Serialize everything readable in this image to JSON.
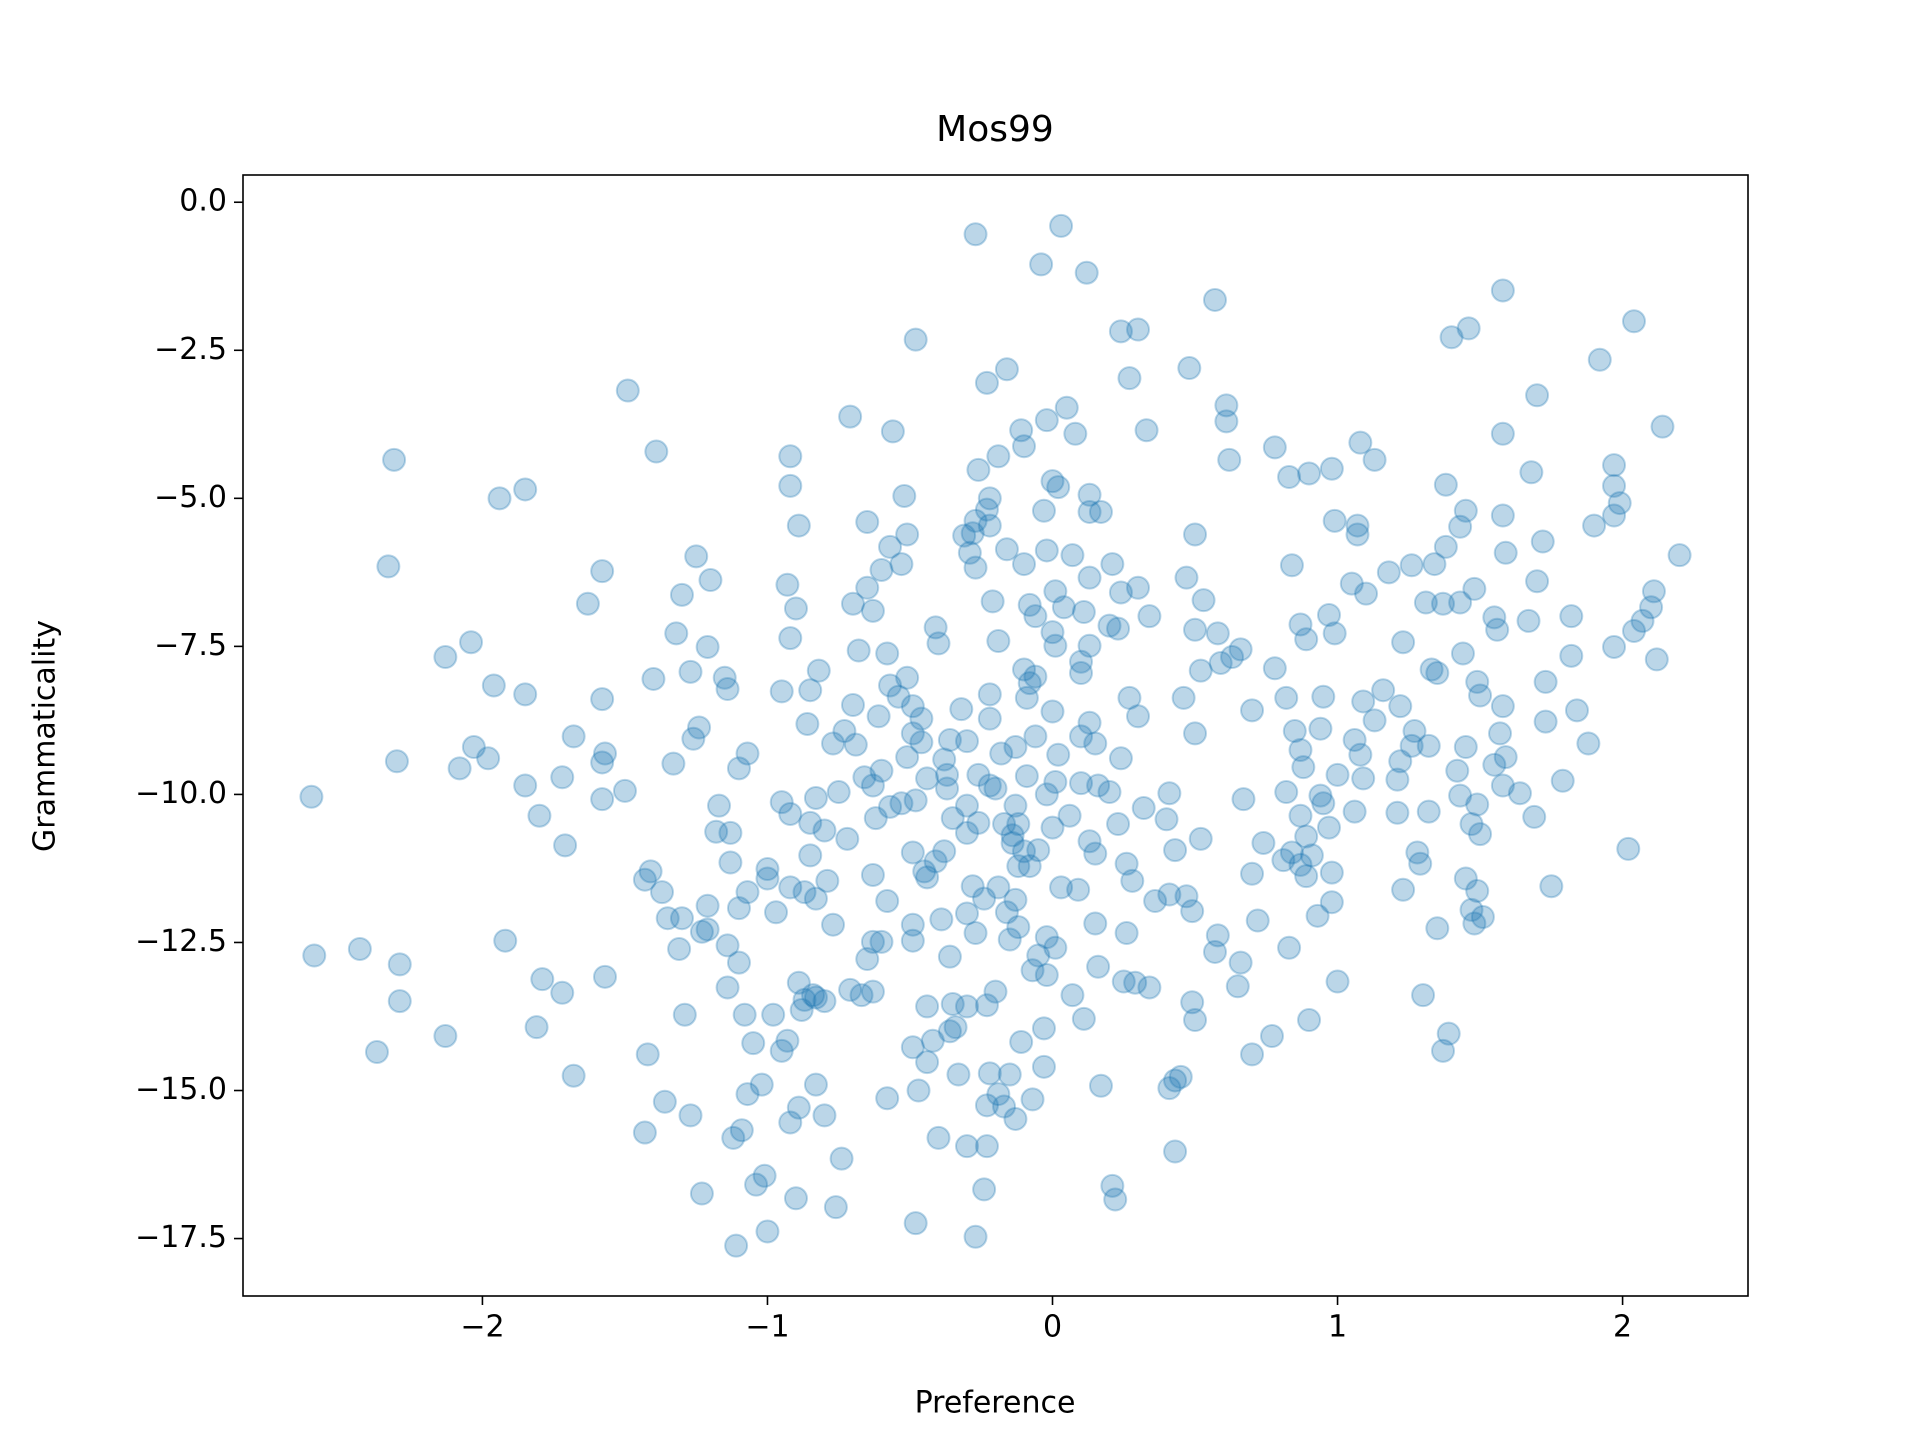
{
  "chart_data": {
    "type": "scatter",
    "title": "Mos99",
    "x_label": "Preference",
    "y_label": "Grammaticality",
    "color": "#1f77b4",
    "opacity": 0.3,
    "xlim": [
      -2.84,
      2.44
    ],
    "ylim": [
      -18.47,
      0.46
    ],
    "xticks": [
      {
        "value": -2,
        "label": "−2"
      },
      {
        "value": -1,
        "label": "−1"
      },
      {
        "value": 0,
        "label": "0"
      },
      {
        "value": 1,
        "label": "1"
      },
      {
        "value": 2,
        "label": "2"
      }
    ],
    "yticks": [
      {
        "value": 0,
        "label": "0.0"
      },
      {
        "value": -2.5,
        "label": "−2.5"
      },
      {
        "value": -5,
        "label": "−5.0"
      },
      {
        "value": -7.5,
        "label": "−7.5"
      },
      {
        "value": -10,
        "label": "−10.0"
      },
      {
        "value": -12.5,
        "label": "−12.5"
      },
      {
        "value": -15,
        "label": "−15.0"
      },
      {
        "value": -17.5,
        "label": "−17.5"
      }
    ],
    "grid": false,
    "x": [
      -0.27,
      0.03,
      -0.04,
      0.12,
      0.57,
      1.58,
      2.04,
      1.4,
      1.46,
      0.24,
      0.3,
      -0.48,
      1.92,
      -0.16,
      -0.23,
      0.48,
      0.27,
      -1.49,
      1.7,
      0.05,
      0.61,
      0.61,
      -0.71,
      -0.02,
      0.08,
      0.33,
      2.14,
      1.58,
      -0.56,
      -0.11,
      -0.1,
      1.08,
      1.13,
      -1.39,
      -0.92,
      -2.31,
      0.62,
      0.78,
      -0.19,
      -0.26,
      0.98,
      0.9,
      0.83,
      1.68,
      1.97,
      1.97,
      1.38,
      0.0,
      0.02,
      -0.92,
      -1.85,
      -1.94,
      -0.22,
      -0.52,
      0.13,
      0.17,
      0.13,
      1.99,
      1.97,
      -0.03,
      -0.23,
      1.45,
      1.43,
      1.58,
      0.99,
      1.07,
      1.07,
      1.9,
      -0.89,
      -0.65,
      -0.27,
      -0.22,
      0.5,
      -0.31,
      -0.28,
      -0.51,
      -0.57,
      -0.02,
      0.07,
      1.38,
      2.2,
      1.72,
      1.59,
      -1.25,
      -0.29,
      -0.27,
      -0.16,
      -0.53,
      0.84,
      1.26,
      1.34,
      -2.33,
      0.21,
      -1.58,
      -0.6,
      1.18,
      -0.1,
      0.13,
      0.47,
      -1.2,
      -0.93,
      1.7,
      1.48,
      0.3,
      1.05,
      1.1,
      0.01,
      0.24,
      2.11,
      -0.65,
      -1.3,
      0.53,
      1.43,
      1.37,
      1.31,
      -1.63,
      -0.7,
      -0.63,
      -0.9,
      0.04,
      0.11,
      -0.08,
      -0.21,
      2.1,
      1.82,
      0.34,
      0.97,
      1.67,
      2.07,
      2.04,
      -0.06,
      0.58,
      1.55,
      1.56,
      0.87,
      0.89,
      -0.41,
      0.23,
      0.0,
      0.5,
      0.2,
      0.99,
      -1.32,
      -0.92,
      -0.19,
      -0.4,
      -2.04,
      0.01,
      0.13,
      1.23,
      -1.21,
      0.66,
      0.63,
      1.97,
      -0.68,
      -0.58,
      -2.13,
      1.44,
      1.82,
      0.59,
      0.52,
      2.12,
      0.1,
      0.1,
      1.33,
      1.35,
      0.78,
      -0.1,
      -1.27,
      -0.82,
      -0.51,
      -1.15,
      -1.14,
      -0.06,
      -0.08,
      -1.4,
      1.49,
      1.73,
      -1.96,
      -0.57,
      -0.54,
      -0.95,
      -0.85,
      -0.22,
      1.16,
      1.5,
      -1.85,
      1.09,
      0.46,
      0.27,
      -1.58,
      -0.09,
      0.7,
      0.82,
      0.95,
      1.58,
      -0.49,
      -0.7,
      -0.32,
      1.22,
      1.84,
      0.0,
      -1.24,
      -0.46,
      -0.61,
      0.3,
      1.73,
      -0.22,
      0.13,
      -0.73,
      -0.86,
      1.13,
      0.85,
      0.94,
      -0.49,
      0.5,
      1.57,
      0.1,
      1.27,
      -1.26,
      -1.68,
      -0.06,
      -0.36,
      1.06,
      -0.46,
      -0.3,
      -0.77,
      -0.69,
      0.15,
      -0.13,
      1.88,
      1.26,
      1.32,
      1.45,
      -2.03,
      0.87,
      -0.18,
      -1.57,
      -0.51,
      -1.07,
      0.02,
      1.08,
      -1.98,
      1.59,
      1.22,
      0.24,
      -0.38,
      -1.58,
      -2.3,
      -1.33,
      0.88,
      1.55,
      -2.08,
      -1.1,
      -0.6,
      1.42,
      -0.26,
      -0.37,
      1.0,
      1.09,
      -0.66,
      -0.44,
      -1.72,
      -0.09,
      1.79,
      1.21,
      -1.85,
      0.01,
      0.1,
      -0.63,
      0.16,
      -0.22,
      1.58,
      -0.37,
      -0.2,
      -1.5,
      0.82,
      1.64,
      -0.75,
      -0.02,
      0.94,
      0.2,
      0.41,
      1.43,
      0.67,
      -2.6,
      -1.58,
      -0.83,
      -0.95,
      0.95,
      -0.53,
      -0.48,
      -0.57,
      1.49,
      -1.17,
      -0.3,
      -0.13,
      -0.92,
      1.21,
      1.06,
      0.32,
      1.32,
      -0.62,
      0.87,
      -1.8,
      1.69,
      0.06,
      -0.35,
      -0.26,
      0.23,
      0.4,
      -0.85,
      -0.17,
      -0.12,
      0.0,
      0.97,
      1.47,
      -0.8,
      -1.18,
      -0.3,
      -1.13,
      1.5,
      -0.14,
      0.89,
      -0.72,
      0.52,
      -0.14,
      0.74,
      0.13,
      -1.71,
      -0.49,
      -0.85,
      0.84,
      0.43,
      -0.05,
      -0.38,
      -0.1,
      1.28,
      2.02,
      0.15,
      0.91,
      0.81,
      -0.41,
      -1.13,
      1.29,
      0.87,
      0.26,
      -0.08,
      -0.12,
      -1.0,
      -1.41,
      0.7,
      0.98,
      -0.45,
      -0.63,
      0.89,
      -1.0,
      1.45,
      -1.43,
      -0.44,
      -0.79,
      1.75,
      0.28,
      -0.92,
      0.03,
      0.09,
      -0.28,
      1.23,
      -1.07,
      1.49,
      -0.87,
      -0.19,
      -1.37,
      0.41,
      0.47,
      -0.24,
      0.36,
      -0.13,
      -0.83,
      0.98,
      -0.58,
      -1.21,
      -1.1,
      0.49,
      1.47,
      -0.3,
      -0.16,
      -0.97,
      0.93,
      1.51,
      -1.35,
      -1.3,
      -0.39,
      0.72,
      1.48,
      0.15,
      -0.49,
      -0.77,
      -0.12,
      1.35,
      -1.21,
      -1.23,
      0.26,
      -0.27,
      -0.02,
      0.58,
      -0.6,
      -0.63,
      -0.49,
      -1.92,
      -0.15,
      -1.14,
      0.83,
      -1.31,
      -2.43,
      0.01,
      -2.59,
      -0.05,
      0.57,
      -0.36,
      -0.65,
      -1.1,
      -2.29,
      0.66,
      0.16,
      -0.07,
      -0.02,
      1.0,
      -0.89,
      -1.79,
      -1.57,
      0.25,
      0.29,
      0.34,
      -1.14,
      0.65,
      -0.71,
      -0.63,
      -1.72,
      -0.2,
      -0.84,
      -0.67,
      -0.83,
      0.07,
      -0.87,
      1.3,
      -0.8,
      -2.29,
      -0.35,
      -0.23,
      -0.44,
      0.49,
      -0.88,
      -0.3,
      0.5,
      0.11,
      -1.08,
      -1.29,
      -0.98,
      0.9,
      -0.34,
      -1.81,
      -0.03,
      1.39,
      0.77,
      -2.13,
      -0.36,
      -0.11,
      0.7,
      -0.93,
      -1.05,
      -0.95,
      -0.49,
      -0.42,
      1.37,
      -2.37,
      -1.42,
      -0.44,
      -0.03,
      -0.22,
      -0.15,
      0.45,
      -0.83,
      -1.68,
      -0.33,
      0.43,
      0.17,
      -1.02,
      0.41,
      -0.47,
      -0.19,
      -1.07,
      -0.07,
      -0.58,
      -1.36,
      -0.17,
      -0.23,
      -0.89,
      -1.27,
      -0.8,
      -0.92,
      -0.13,
      -1.09,
      -1.43,
      -0.4,
      -1.12,
      -0.3,
      -0.23,
      0.43,
      -0.74,
      -1.01,
      -1.04,
      0.21,
      -0.24,
      -1.23,
      0.22,
      -0.9,
      -0.76,
      -0.48,
      -1.0,
      -0.27,
      -1.11
    ],
    "values": [
      -0.54,
      -0.4,
      -1.05,
      -1.19,
      -1.65,
      -1.49,
      -2.01,
      -2.28,
      -2.13,
      -2.18,
      -2.15,
      -2.32,
      -2.66,
      -2.82,
      -3.05,
      -2.8,
      -2.97,
      -3.18,
      -3.26,
      -3.47,
      -3.43,
      -3.7,
      -3.62,
      -3.68,
      -3.91,
      -3.85,
      -3.79,
      -3.91,
      -3.87,
      -3.85,
      -4.12,
      -4.06,
      -4.35,
      -4.21,
      -4.29,
      -4.35,
      -4.35,
      -4.14,
      -4.29,
      -4.52,
      -4.5,
      -4.58,
      -4.64,
      -4.56,
      -4.44,
      -4.79,
      -4.77,
      -4.71,
      -4.81,
      -4.79,
      -4.85,
      -5.0,
      -5.0,
      -4.96,
      -4.94,
      -5.23,
      -5.23,
      -5.08,
      -5.29,
      -5.21,
      -5.19,
      -5.21,
      -5.48,
      -5.29,
      -5.38,
      -5.46,
      -5.61,
      -5.46,
      -5.46,
      -5.4,
      -5.38,
      -5.46,
      -5.61,
      -5.63,
      -5.59,
      -5.61,
      -5.82,
      -5.88,
      -5.96,
      -5.82,
      -5.96,
      -5.73,
      -5.92,
      -5.98,
      -5.92,
      -6.17,
      -5.86,
      -6.11,
      -6.13,
      -6.13,
      -6.11,
      -6.15,
      -6.11,
      -6.23,
      -6.21,
      -6.25,
      -6.11,
      -6.34,
      -6.34,
      -6.38,
      -6.46,
      -6.4,
      -6.53,
      -6.51,
      -6.44,
      -6.61,
      -6.57,
      -6.59,
      -6.57,
      -6.51,
      -6.63,
      -6.72,
      -6.76,
      -6.78,
      -6.76,
      -6.78,
      -6.78,
      -6.9,
      -6.86,
      -6.84,
      -6.92,
      -6.8,
      -6.74,
      -6.84,
      -6.99,
      -6.99,
      -6.97,
      -7.07,
      -7.07,
      -7.24,
      -6.99,
      -7.28,
      -7.01,
      -7.22,
      -7.13,
      -7.38,
      -7.18,
      -7.2,
      -7.26,
      -7.22,
      -7.15,
      -7.28,
      -7.28,
      -7.36,
      -7.41,
      -7.45,
      -7.43,
      -7.49,
      -7.49,
      -7.43,
      -7.51,
      -7.55,
      -7.68,
      -7.51,
      -7.57,
      -7.62,
      -7.68,
      -7.62,
      -7.66,
      -7.78,
      -7.91,
      -7.72,
      -7.76,
      -7.95,
      -7.89,
      -7.95,
      -7.87,
      -7.89,
      -7.93,
      -7.91,
      -8.03,
      -8.03,
      -8.22,
      -8.01,
      -8.12,
      -8.05,
      -8.1,
      -8.1,
      -8.16,
      -8.16,
      -8.35,
      -8.26,
      -8.24,
      -8.31,
      -8.24,
      -8.33,
      -8.31,
      -8.43,
      -8.37,
      -8.37,
      -8.39,
      -8.37,
      -8.58,
      -8.37,
      -8.35,
      -8.51,
      -8.51,
      -8.49,
      -8.56,
      -8.51,
      -8.58,
      -8.6,
      -8.87,
      -8.72,
      -8.68,
      -8.68,
      -8.77,
      -8.72,
      -8.79,
      -8.93,
      -8.81,
      -8.75,
      -8.93,
      -8.89,
      -8.97,
      -8.97,
      -8.97,
      -9.02,
      -8.93,
      -9.06,
      -9.02,
      -9.02,
      -9.08,
      -9.08,
      -9.12,
      -9.1,
      -9.14,
      -9.16,
      -9.14,
      -9.2,
      -9.14,
      -9.18,
      -9.18,
      -9.2,
      -9.2,
      -9.25,
      -9.31,
      -9.31,
      -9.37,
      -9.31,
      -9.33,
      -9.33,
      -9.39,
      -9.37,
      -9.44,
      -9.39,
      -9.41,
      -9.46,
      -9.44,
      -9.48,
      -9.54,
      -9.5,
      -9.56,
      -9.56,
      -9.6,
      -9.6,
      -9.67,
      -9.67,
      -9.67,
      -9.73,
      -9.71,
      -9.73,
      -9.71,
      -9.69,
      -9.77,
      -9.75,
      -9.85,
      -9.79,
      -9.81,
      -9.85,
      -9.85,
      -9.85,
      -9.85,
      -9.9,
      -9.9,
      -9.94,
      -9.96,
      -9.98,
      -9.96,
      -10.0,
      -10.02,
      -9.96,
      -9.98,
      -10.02,
      -10.08,
      -10.04,
      -10.08,
      -10.06,
      -10.13,
      -10.15,
      -10.15,
      -10.1,
      -10.21,
      -10.17,
      -10.19,
      -10.19,
      -10.19,
      -10.33,
      -10.31,
      -10.29,
      -10.23,
      -10.29,
      -10.4,
      -10.36,
      -10.36,
      -10.38,
      -10.36,
      -10.4,
      -10.48,
      -10.5,
      -10.42,
      -10.48,
      -10.5,
      -10.5,
      -10.56,
      -10.56,
      -10.5,
      -10.61,
      -10.63,
      -10.65,
      -10.65,
      -10.67,
      -10.69,
      -10.71,
      -10.75,
      -10.75,
      -10.82,
      -10.82,
      -10.79,
      -10.86,
      -10.98,
      -11.03,
      -10.98,
      -10.94,
      -10.94,
      -10.96,
      -10.96,
      -10.98,
      -10.92,
      -11.0,
      -11.03,
      -11.11,
      -11.13,
      -11.15,
      -11.17,
      -11.19,
      -11.17,
      -11.21,
      -11.21,
      -11.26,
      -11.3,
      -11.34,
      -11.32,
      -11.3,
      -11.36,
      -11.38,
      -11.42,
      -11.42,
      -11.44,
      -11.4,
      -11.46,
      -11.55,
      -11.46,
      -11.57,
      -11.57,
      -11.61,
      -11.55,
      -11.61,
      -11.65,
      -11.63,
      -11.65,
      -11.57,
      -11.65,
      -11.69,
      -11.72,
      -11.76,
      -11.8,
      -11.78,
      -11.76,
      -11.82,
      -11.8,
      -11.88,
      -11.92,
      -11.97,
      -11.95,
      -12.01,
      -11.99,
      -11.99,
      -12.05,
      -12.07,
      -12.09,
      -12.09,
      -12.11,
      -12.13,
      -12.18,
      -12.18,
      -12.2,
      -12.2,
      -12.24,
      -12.26,
      -12.28,
      -12.32,
      -12.34,
      -12.34,
      -12.41,
      -12.38,
      -12.49,
      -12.49,
      -12.47,
      -12.47,
      -12.45,
      -12.55,
      -12.59,
      -12.61,
      -12.61,
      -12.59,
      -12.72,
      -12.72,
      -12.66,
      -12.74,
      -12.78,
      -12.84,
      -12.87,
      -12.84,
      -12.91,
      -12.97,
      -13.05,
      -13.16,
      -13.18,
      -13.12,
      -13.08,
      -13.16,
      -13.18,
      -13.26,
      -13.26,
      -13.24,
      -13.3,
      -13.33,
      -13.35,
      -13.33,
      -13.39,
      -13.39,
      -13.43,
      -13.39,
      -13.47,
      -13.39,
      -13.49,
      -13.49,
      -13.54,
      -13.56,
      -13.58,
      -13.51,
      -13.64,
      -13.58,
      -13.81,
      -13.79,
      -13.72,
      -13.72,
      -13.72,
      -13.81,
      -13.93,
      -13.93,
      -13.95,
      -14.04,
      -14.08,
      -14.08,
      -14.0,
      -14.18,
      -14.39,
      -14.16,
      -14.2,
      -14.33,
      -14.27,
      -14.16,
      -14.33,
      -14.35,
      -14.39,
      -14.52,
      -14.6,
      -14.71,
      -14.73,
      -14.77,
      -14.9,
      -14.75,
      -14.73,
      -14.83,
      -14.92,
      -14.9,
      -14.96,
      -15.0,
      -15.06,
      -15.06,
      -15.15,
      -15.13,
      -15.19,
      -15.27,
      -15.25,
      -15.29,
      -15.42,
      -15.42,
      -15.54,
      -15.48,
      -15.67,
      -15.71,
      -15.8,
      -15.8,
      -15.94,
      -15.94,
      -16.03,
      -16.15,
      -16.44,
      -16.59,
      -16.61,
      -16.67,
      -16.74,
      -16.84,
      -16.82,
      -16.97,
      -17.24,
      -17.38,
      -17.47,
      -17.62
    ]
  }
}
